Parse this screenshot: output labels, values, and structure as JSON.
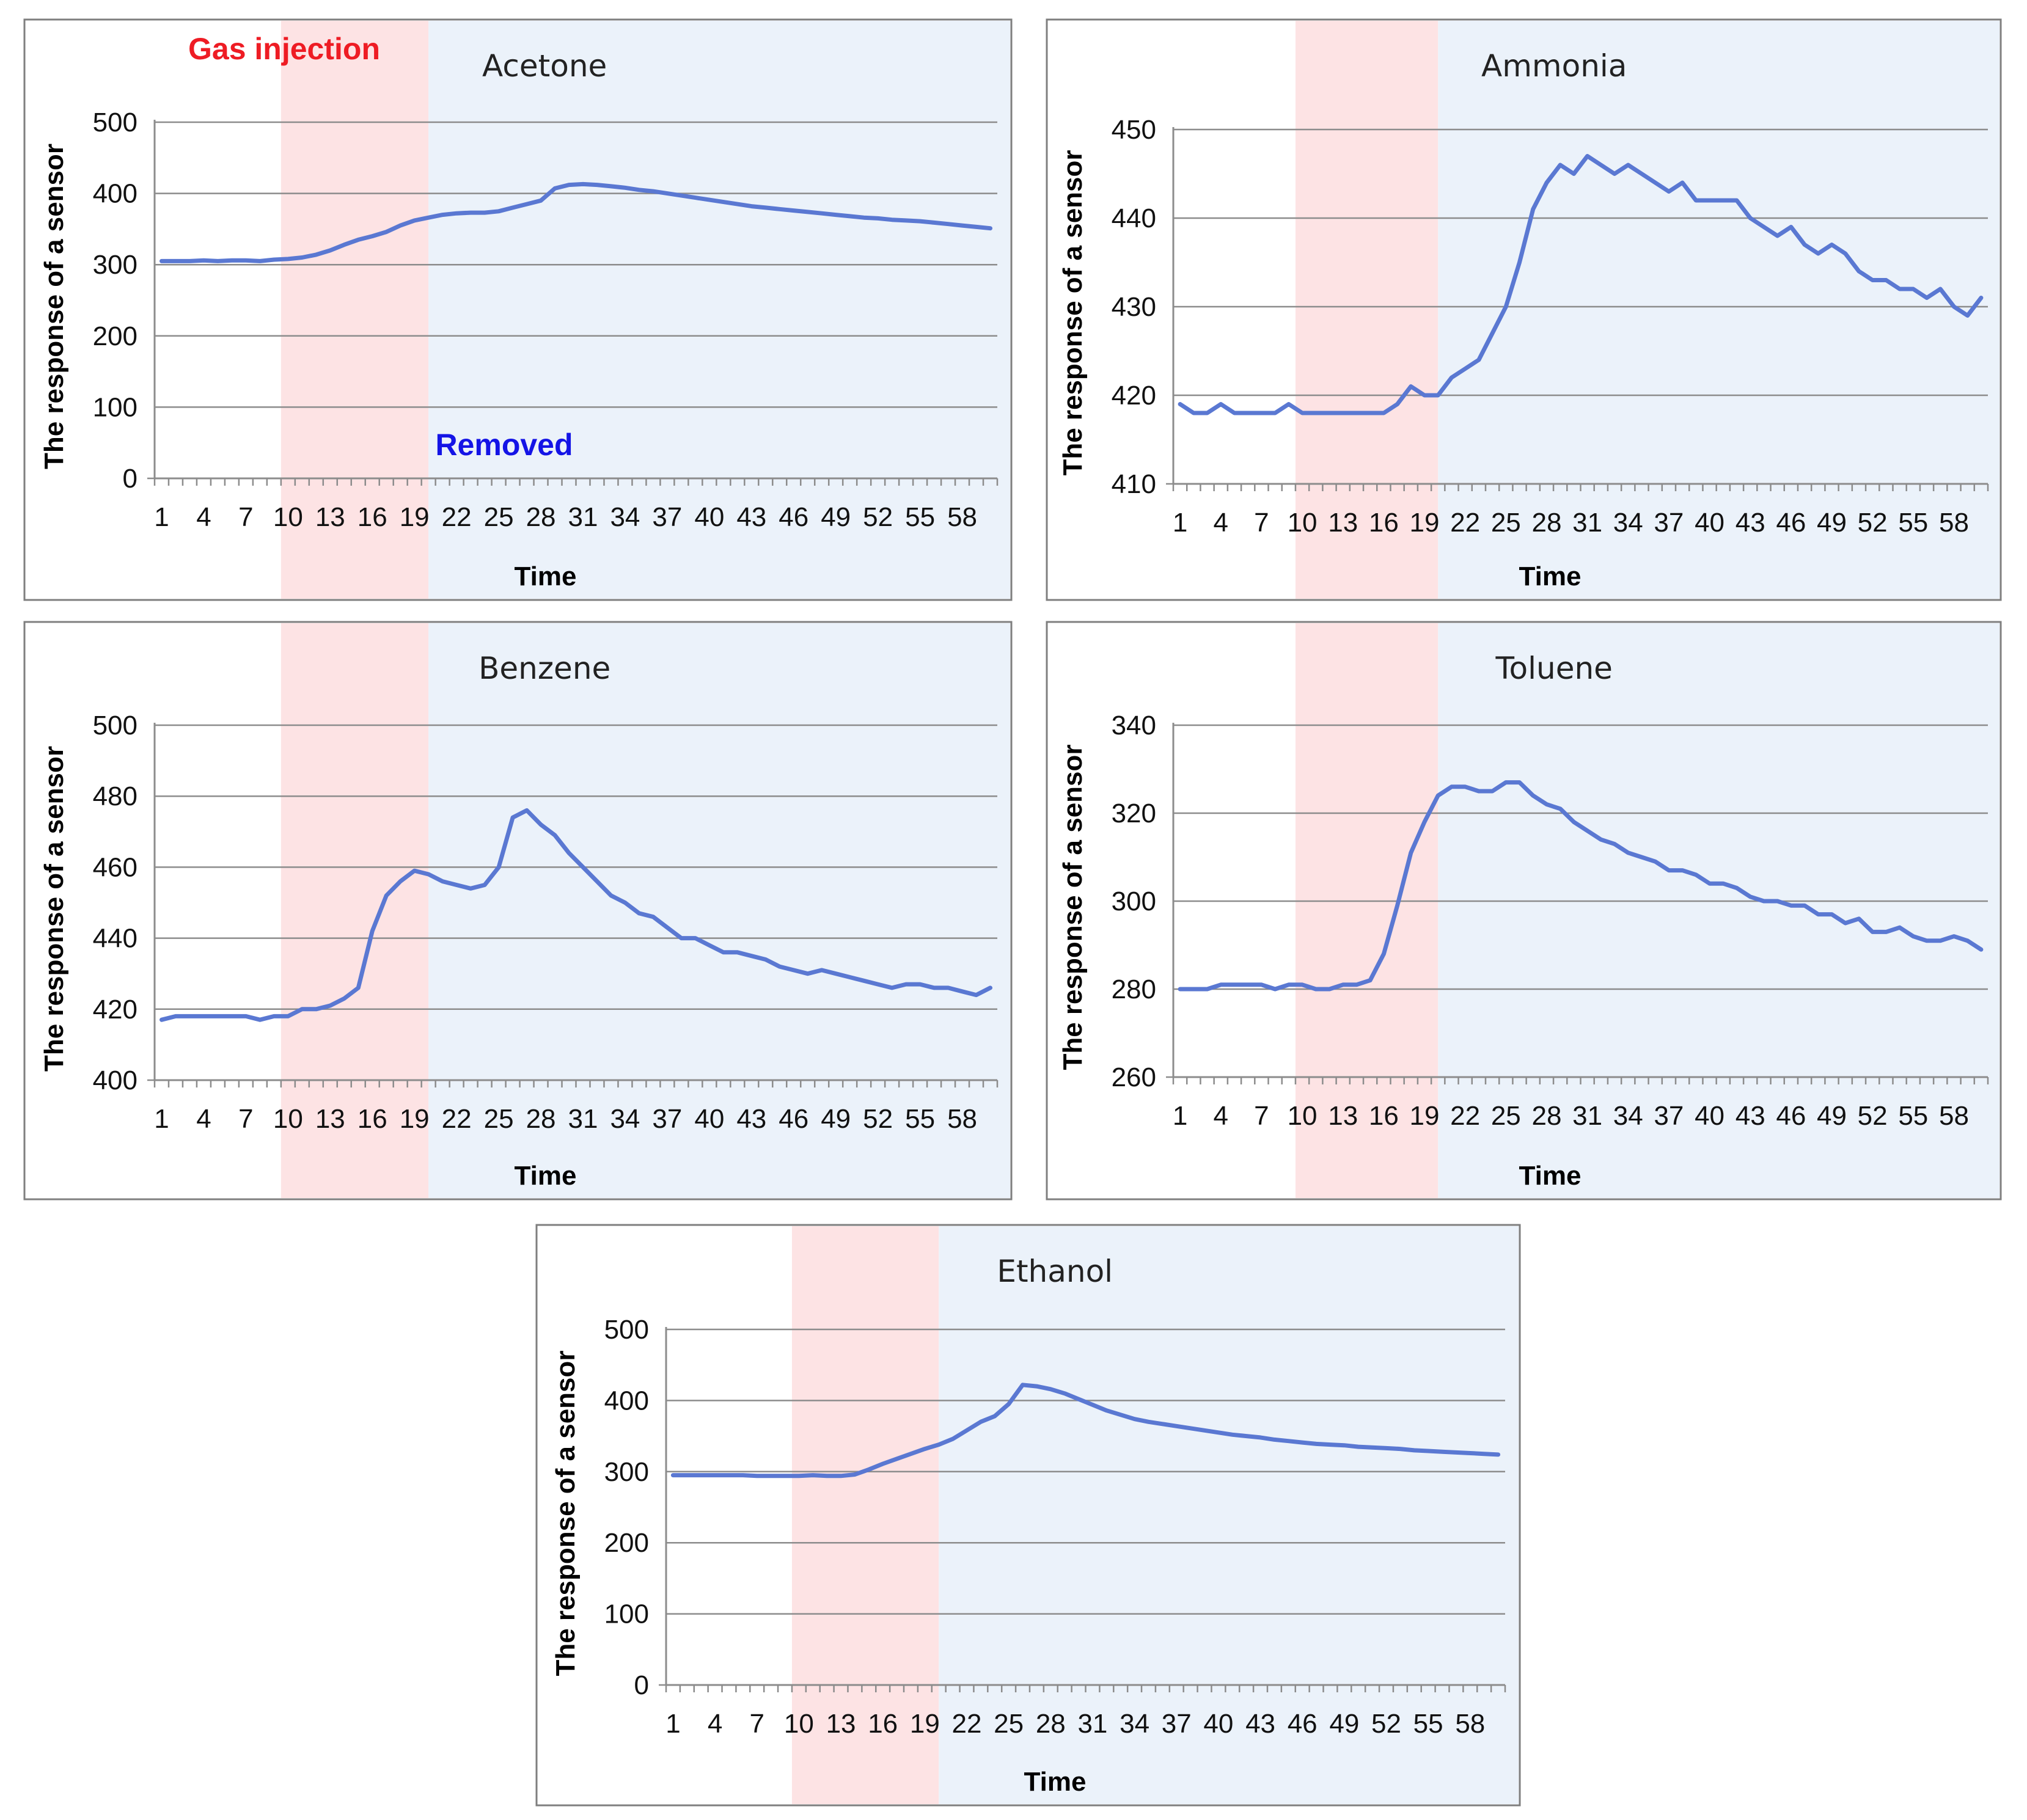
{
  "colors": {
    "series": "#5a78d2",
    "injection_band": "#fde3e4",
    "removed_band": "#ebf2fa",
    "injection_text": "#ee1c24",
    "removed_text": "#1414e6"
  },
  "annotations": {
    "gas_injection": "Gas injection",
    "removed": "Removed"
  },
  "chart_data": [
    {
      "type": "line",
      "title": "Acetone",
      "xlabel": "Time",
      "ylabel": "The response of a sensor",
      "ylim": [
        0,
        500
      ],
      "yticks": [
        0,
        100,
        200,
        300,
        400,
        500
      ],
      "xticklabels": [
        "1",
        "4",
        "7",
        "10",
        "13",
        "16",
        "19",
        "22",
        "25",
        "28",
        "31",
        "34",
        "37",
        "40",
        "43",
        "46",
        "49",
        "52",
        "55",
        "58"
      ],
      "gas_injection_range": [
        9.5,
        20.0
      ],
      "removed_range": [
        20.0,
        60.0
      ],
      "series": [
        {
          "name": "Acetone",
          "values": [
            305,
            305,
            305,
            306,
            305,
            306,
            306,
            305,
            307,
            308,
            310,
            314,
            320,
            328,
            335,
            340,
            346,
            355,
            362,
            366,
            370,
            372,
            373,
            373,
            375,
            380,
            385,
            390,
            407,
            412,
            413,
            412,
            410,
            408,
            405,
            403,
            400,
            397,
            394,
            391,
            388,
            385,
            382,
            380,
            378,
            376,
            374,
            372,
            370,
            368,
            366,
            365,
            363,
            362,
            361,
            359,
            357,
            355,
            353,
            351
          ]
        }
      ]
    },
    {
      "type": "line",
      "title": "Ammonia",
      "xlabel": "Time",
      "ylabel": "The response of a sensor",
      "ylim": [
        410,
        450
      ],
      "yticks": [
        410,
        420,
        430,
        440,
        450
      ],
      "xticklabels": [
        "1",
        "4",
        "7",
        "10",
        "13",
        "16",
        "19",
        "22",
        "25",
        "28",
        "31",
        "34",
        "37",
        "40",
        "43",
        "46",
        "49",
        "52",
        "55",
        "58"
      ],
      "gas_injection_range": [
        9.5,
        20.0
      ],
      "removed_range": [
        20.0,
        60.0
      ],
      "series": [
        {
          "name": "Ammonia",
          "values": [
            419,
            418,
            418,
            419,
            418,
            418,
            418,
            418,
            419,
            418,
            418,
            418,
            418,
            418,
            418,
            418,
            419,
            421,
            420,
            420,
            422,
            423,
            424,
            427,
            430,
            435,
            441,
            444,
            446,
            445,
            447,
            446,
            445,
            446,
            445,
            444,
            443,
            444,
            442,
            442,
            442,
            442,
            440,
            439,
            438,
            439,
            437,
            436,
            437,
            436,
            434,
            433,
            433,
            432,
            432,
            431,
            432,
            430,
            429,
            431
          ]
        }
      ]
    },
    {
      "type": "line",
      "title": "Benzene",
      "xlabel": "Time",
      "ylabel": "The response of a sensor",
      "ylim": [
        400,
        500
      ],
      "yticks": [
        400,
        420,
        440,
        460,
        480,
        500
      ],
      "xticklabels": [
        "1",
        "4",
        "7",
        "10",
        "13",
        "16",
        "19",
        "22",
        "25",
        "28",
        "31",
        "34",
        "37",
        "40",
        "43",
        "46",
        "49",
        "52",
        "55",
        "58"
      ],
      "gas_injection_range": [
        9.5,
        20.0
      ],
      "removed_range": [
        20.0,
        60.0
      ],
      "series": [
        {
          "name": "Benzene",
          "values": [
            417,
            418,
            418,
            418,
            418,
            418,
            418,
            417,
            418,
            418,
            420,
            420,
            421,
            423,
            426,
            442,
            452,
            456,
            459,
            458,
            456,
            455,
            454,
            455,
            460,
            474,
            476,
            472,
            469,
            464,
            460,
            456,
            452,
            450,
            447,
            446,
            443,
            440,
            440,
            438,
            436,
            436,
            435,
            434,
            432,
            431,
            430,
            431,
            430,
            429,
            428,
            427,
            426,
            427,
            427,
            426,
            426,
            425,
            424,
            426
          ]
        }
      ]
    },
    {
      "type": "line",
      "title": "Toluene",
      "xlabel": "Time",
      "ylabel": "The response of a sensor",
      "ylim": [
        260,
        340
      ],
      "yticks": [
        260,
        280,
        300,
        320,
        340
      ],
      "xticklabels": [
        "1",
        "4",
        "7",
        "10",
        "13",
        "16",
        "19",
        "22",
        "25",
        "28",
        "31",
        "34",
        "37",
        "40",
        "43",
        "46",
        "49",
        "52",
        "55",
        "58"
      ],
      "gas_injection_range": [
        9.5,
        20.0
      ],
      "removed_range": [
        20.0,
        60.0
      ],
      "series": [
        {
          "name": "Toluene",
          "values": [
            280,
            280,
            280,
            281,
            281,
            281,
            281,
            280,
            281,
            281,
            280,
            280,
            281,
            281,
            282,
            288,
            299,
            311,
            318,
            324,
            326,
            326,
            325,
            325,
            327,
            327,
            324,
            322,
            321,
            318,
            316,
            314,
            313,
            311,
            310,
            309,
            307,
            307,
            306,
            304,
            304,
            303,
            301,
            300,
            300,
            299,
            299,
            297,
            297,
            295,
            296,
            293,
            293,
            294,
            292,
            291,
            291,
            292,
            291,
            289
          ]
        }
      ]
    },
    {
      "type": "line",
      "title": "Ethanol",
      "xlabel": "Time",
      "ylabel": "The response of a sensor",
      "ylim": [
        0,
        500
      ],
      "yticks": [
        0,
        100,
        200,
        300,
        400,
        500
      ],
      "xticklabels": [
        "1",
        "4",
        "7",
        "10",
        "13",
        "16",
        "19",
        "22",
        "25",
        "28",
        "31",
        "34",
        "37",
        "40",
        "43",
        "46",
        "49",
        "52",
        "55",
        "58"
      ],
      "gas_injection_range": [
        9.5,
        20.0
      ],
      "removed_range": [
        20.0,
        60.0
      ],
      "series": [
        {
          "name": "Ethanol",
          "values": [
            295,
            295,
            295,
            295,
            295,
            295,
            294,
            294,
            294,
            294,
            295,
            294,
            294,
            296,
            303,
            311,
            318,
            325,
            332,
            338,
            346,
            358,
            370,
            378,
            395,
            422,
            420,
            416,
            410,
            402,
            394,
            386,
            380,
            374,
            370,
            367,
            364,
            361,
            358,
            355,
            352,
            350,
            348,
            345,
            343,
            341,
            339,
            338,
            337,
            335,
            334,
            333,
            332,
            330,
            329,
            328,
            327,
            326,
            325,
            324
          ]
        }
      ]
    }
  ]
}
